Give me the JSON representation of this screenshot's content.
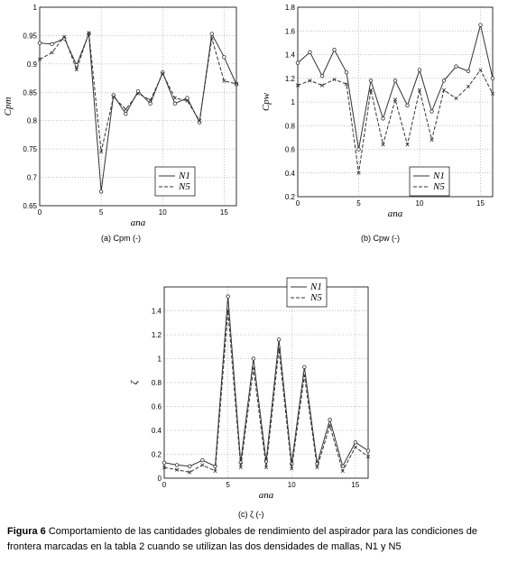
{
  "caption": {
    "label": "Figura 6",
    "text": "Comportamiento de las cantidades globales de rendimiento del aspirador para las condiciones de frontera marcadas en la tabla 2 cuando se utilizan las dos densidades de mallas, N1 y N5"
  },
  "chart_data": [
    {
      "type": "line",
      "subcaption": "(a) Cpm (-)",
      "xlabel": "ana",
      "ylabel": "Cpm",
      "xlim": [
        0,
        16
      ],
      "ylim": [
        0.65,
        1
      ],
      "xticks": [
        0,
        5,
        10,
        15
      ],
      "yticks": [
        0.65,
        0.7,
        0.75,
        0.8,
        0.85,
        0.9,
        0.95,
        1
      ],
      "ytick_labels": [
        "0.65",
        "0.7",
        "0.75",
        "0.8",
        "0.85",
        "0.9",
        "0.95",
        "1"
      ],
      "grid": true,
      "legend_position": "bottom-right",
      "x": [
        0,
        1,
        2,
        3,
        4,
        5,
        6,
        7,
        8,
        9,
        10,
        11,
        12,
        13,
        14,
        15,
        16
      ],
      "series": [
        {
          "name": "N1",
          "style": "solid-circle",
          "values": [
            0.937,
            0.935,
            0.945,
            0.898,
            0.953,
            0.675,
            0.845,
            0.812,
            0.852,
            0.83,
            0.885,
            0.83,
            0.84,
            0.797,
            0.953,
            0.912,
            0.864
          ]
        },
        {
          "name": "N5",
          "style": "dashed-x",
          "values": [
            0.908,
            0.92,
            0.948,
            0.89,
            0.955,
            0.745,
            0.842,
            0.82,
            0.848,
            0.836,
            0.883,
            0.84,
            0.835,
            0.8,
            0.945,
            0.87,
            0.865
          ]
        }
      ]
    },
    {
      "type": "line",
      "subcaption": "(b) Cpw (-)",
      "xlabel": "ana",
      "ylabel": "Cpw",
      "xlim": [
        0,
        16
      ],
      "ylim": [
        0.2,
        1.8
      ],
      "xticks": [
        0,
        5,
        10,
        15
      ],
      "yticks": [
        0.2,
        0.4,
        0.6,
        0.8,
        1,
        1.2,
        1.4,
        1.6,
        1.8
      ],
      "ytick_labels": [
        "0.2",
        "0.4",
        "0.6",
        "0.8",
        "1",
        "1.2",
        "1.4",
        "1.6",
        "1.8"
      ],
      "grid": true,
      "legend_position": "bottom-right",
      "x": [
        0,
        1,
        2,
        3,
        4,
        5,
        6,
        7,
        8,
        9,
        10,
        11,
        12,
        13,
        14,
        15,
        16
      ],
      "series": [
        {
          "name": "N1",
          "style": "solid-circle",
          "values": [
            1.33,
            1.42,
            1.22,
            1.44,
            1.25,
            0.6,
            1.18,
            0.86,
            1.18,
            0.97,
            1.27,
            0.92,
            1.18,
            1.3,
            1.26,
            1.65,
            1.2
          ]
        },
        {
          "name": "N5",
          "style": "dashed-x",
          "values": [
            1.14,
            1.18,
            1.14,
            1.19,
            1.15,
            0.4,
            1.1,
            0.64,
            1.02,
            0.64,
            1.1,
            0.68,
            1.1,
            1.03,
            1.13,
            1.27,
            1.07
          ]
        }
      ]
    },
    {
      "type": "line",
      "subcaption": "(c) ζ (-)",
      "xlabel": "ana",
      "ylabel": "ζ",
      "xlim": [
        0,
        16
      ],
      "ylim": [
        0,
        1.6
      ],
      "xticks": [
        0,
        5,
        10,
        15
      ],
      "yticks": [
        0,
        0.2,
        0.4,
        0.6,
        0.8,
        1,
        1.2,
        1.4
      ],
      "ytick_labels": [
        "0",
        "0.2",
        "0.4",
        "0.6",
        "0.8",
        "1",
        "1.2",
        "1.4"
      ],
      "grid": true,
      "legend_position": "top-right",
      "x": [
        0,
        1,
        2,
        3,
        4,
        5,
        6,
        7,
        8,
        9,
        10,
        11,
        12,
        13,
        14,
        15,
        16
      ],
      "series": [
        {
          "name": "N1",
          "style": "solid-circle",
          "values": [
            0.13,
            0.11,
            0.1,
            0.15,
            0.1,
            1.52,
            0.13,
            1.0,
            0.14,
            1.16,
            0.12,
            0.93,
            0.12,
            0.49,
            0.1,
            0.3,
            0.23
          ]
        },
        {
          "name": "N5",
          "style": "dashed-x",
          "values": [
            0.09,
            0.07,
            0.05,
            0.11,
            0.06,
            1.4,
            0.09,
            0.92,
            0.09,
            1.08,
            0.08,
            0.86,
            0.09,
            0.44,
            0.06,
            0.26,
            0.18
          ]
        }
      ]
    }
  ]
}
